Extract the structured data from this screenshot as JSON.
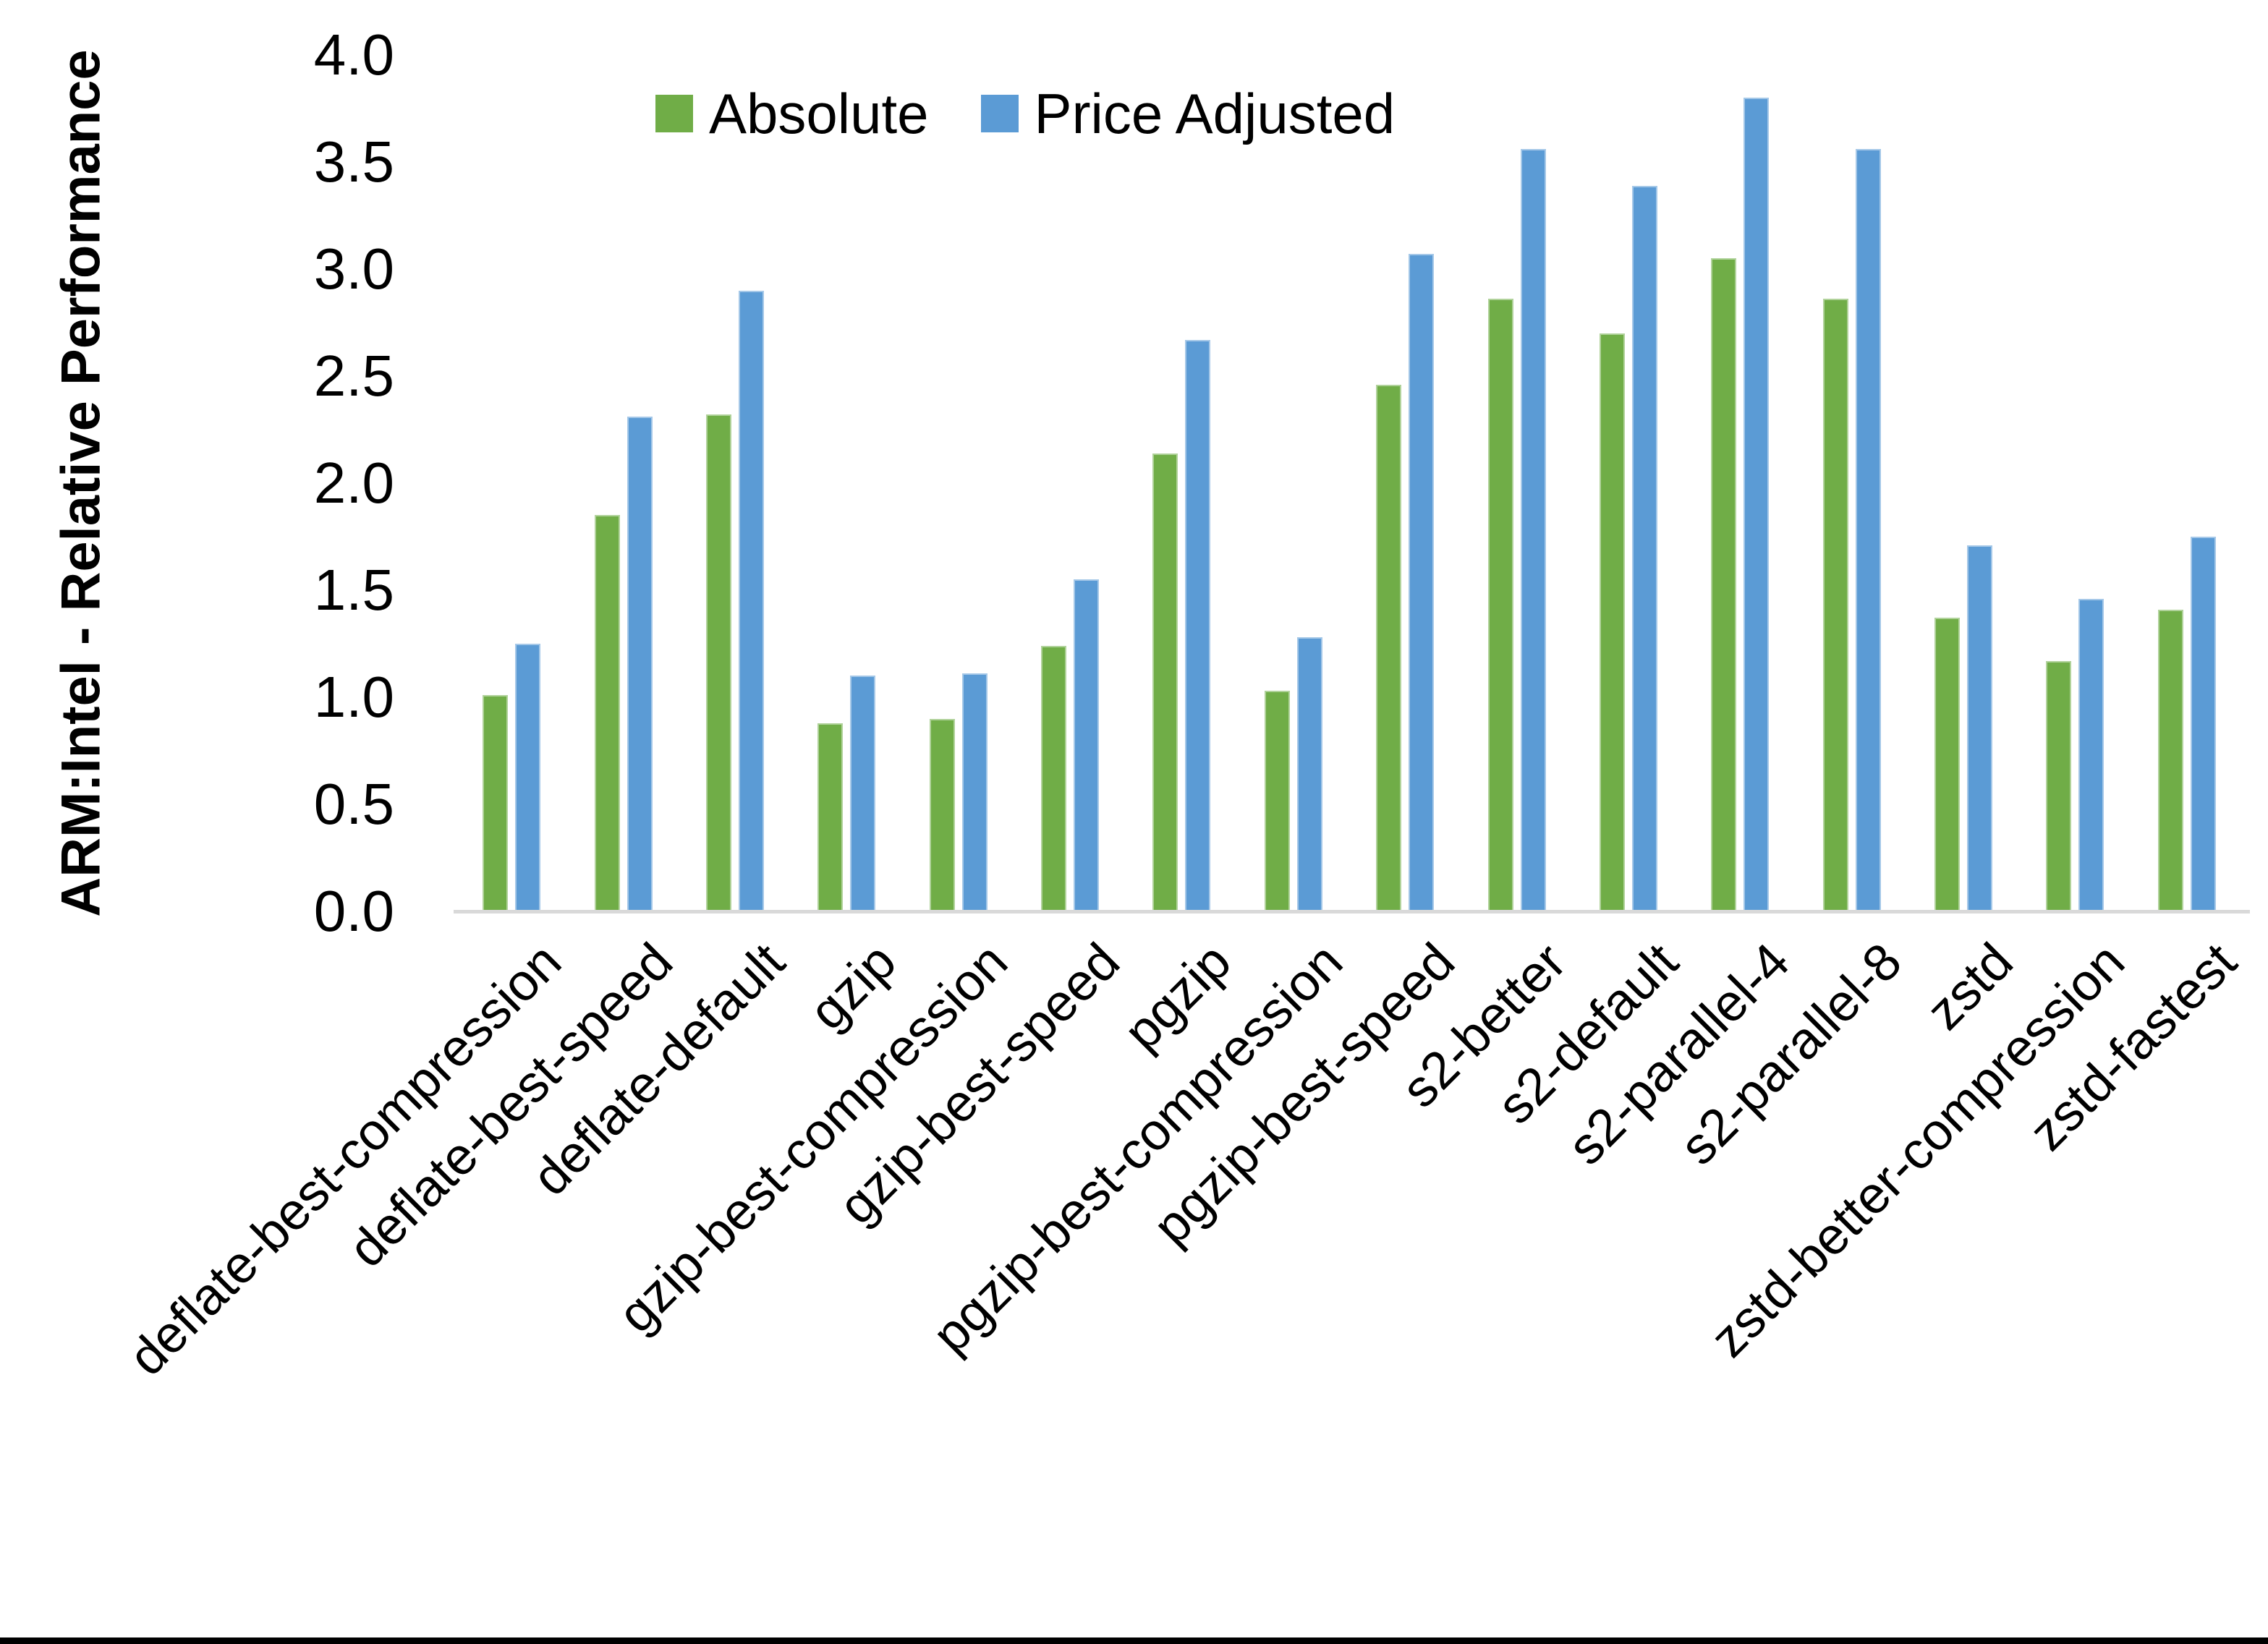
{
  "page": {
    "background": "#ffffff",
    "bottom_border_color": "#000000"
  },
  "chart_data": {
    "type": "bar",
    "title": "",
    "xlabel": "",
    "ylabel": "ARM:Intel - Relative Performance",
    "ylim": [
      0.0,
      4.0
    ],
    "ytick_step": 0.5,
    "ytick_labels": [
      "0.0",
      "0.5",
      "1.0",
      "1.5",
      "2.0",
      "2.5",
      "3.0",
      "3.5",
      "4.0"
    ],
    "grid": false,
    "legend_position": "top",
    "axis_line_color": "#d9d9d9",
    "text_color": "#000000",
    "categories": [
      "deflate-best-compression",
      "deflate-best-speed",
      "deflate-default",
      "gzip",
      "gzip-best-compression",
      "gzip-best-speed",
      "pgzip",
      "pgzip-best-compression",
      "pgzip-best-speed",
      "s2-better",
      "s2-default",
      "s2-parallel-4",
      "s2-parallel-8",
      "zstd",
      "zstd-better-compression",
      "zstd-fastest"
    ],
    "series": [
      {
        "name": "Absolute",
        "color": "#70AD47",
        "values": [
          1.01,
          1.85,
          2.32,
          0.88,
          0.9,
          1.24,
          2.14,
          1.03,
          2.46,
          2.86,
          2.7,
          3.05,
          2.86,
          1.37,
          1.17,
          1.41
        ]
      },
      {
        "name": "Price Adjusted",
        "color": "#5B9BD5",
        "values": [
          1.25,
          2.31,
          2.9,
          1.1,
          1.11,
          1.55,
          2.67,
          1.28,
          3.07,
          3.56,
          3.39,
          3.8,
          3.56,
          1.71,
          1.46,
          1.75
        ]
      }
    ]
  }
}
